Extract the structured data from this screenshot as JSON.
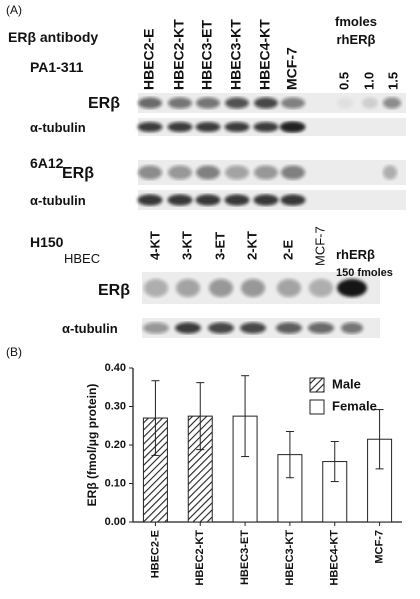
{
  "panel_a": {
    "label": "(A)",
    "antibody_header": "ERβ antibody",
    "fmoles_header": [
      "fmoles",
      "rhERβ"
    ],
    "blot1": {
      "antibody": "PA1-311",
      "lanes": [
        "HBEC2-E",
        "HBEC2-KT",
        "HBEC3-ET",
        "HBEC3-KT",
        "HBEC4-KT",
        "MCF-7"
      ],
      "standards": [
        "0.5",
        "1.0",
        "1.5"
      ],
      "row1": "ERβ",
      "row2": "α-tubulin"
    },
    "blot2": {
      "antibody": "6A12",
      "row1": "ERβ",
      "row2": "α-tubulin"
    },
    "blot3": {
      "antibody": "H150",
      "prefix": "HBEC",
      "lanes": [
        "4-KT",
        "3-KT",
        "3-ET",
        "2-KT",
        "2-E",
        "MCF-7"
      ],
      "standard": [
        "rhERβ",
        "150 fmoles"
      ],
      "row1": "ERβ",
      "row2": "α-tubulin"
    }
  },
  "chart_data": {
    "type": "bar",
    "panel_label": "(B)",
    "y_label": "ERβ (fmol/μg protein)",
    "categories": [
      "HBEC2-E",
      "HBEC2-KT",
      "HBEC3-ET",
      "HBEC3-KT",
      "HBEC4-KT",
      "MCF-7"
    ],
    "series": [
      {
        "name": "Male",
        "color": "#ffffff",
        "pattern": "hatch",
        "values": [
          0.27,
          0.275,
          null,
          null,
          null,
          null
        ],
        "errors": [
          0.097,
          0.087,
          null,
          null,
          null,
          null
        ]
      },
      {
        "name": "Female",
        "color": "#ffffff",
        "pattern": "none",
        "values": [
          null,
          null,
          0.275,
          0.175,
          0.157,
          0.215
        ],
        "errors": [
          null,
          null,
          0.105,
          0.06,
          0.052,
          0.077
        ]
      }
    ],
    "ylim": [
      0,
      0.4
    ],
    "yticks": [
      {
        "value": 0,
        "label": "0.00"
      },
      {
        "value": 0.1,
        "label": "0.10"
      },
      {
        "value": 0.2,
        "label": "0.20"
      },
      {
        "value": 0.3,
        "label": "0.30"
      },
      {
        "value": 0.4,
        "label": "0.40"
      }
    ]
  }
}
